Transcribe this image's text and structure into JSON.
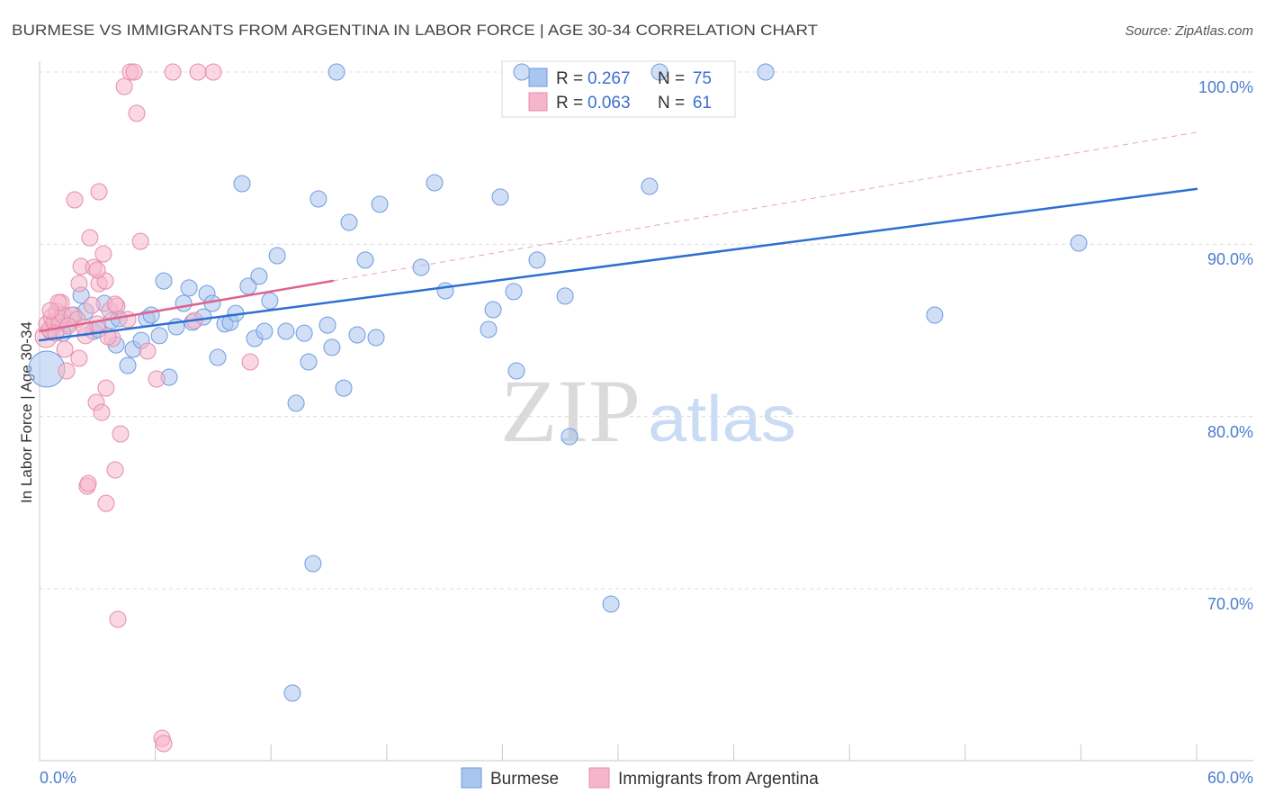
{
  "source": "Source: ZipAtlas.com",
  "watermark": {
    "zip": "ZIP",
    "atlas": "atlas"
  },
  "legend": {
    "r_label": "R =",
    "n_label": "N ="
  },
  "colors": {
    "axis": "#c8c8c8",
    "grid": "#dcdcdc",
    "tick_label": "#4a7dcf",
    "value_text": "#3b6fd0",
    "legend_border": "#d8d8d8"
  },
  "chart_data": {
    "type": "scatter",
    "title": "BURMESE VS IMMIGRANTS FROM ARGENTINA IN LABOR FORCE | AGE 30-34 CORRELATION CHART",
    "ylabel": "In Labor Force | Age 30-34",
    "xlim": [
      0,
      60
    ],
    "ylim": [
      60,
      100.63
    ],
    "x_ticks": [
      0,
      6,
      12,
      18,
      24,
      30,
      36,
      42,
      48,
      54,
      60
    ],
    "x_tick_labels": [
      "0.0%",
      "60.0%"
    ],
    "y_ticks": [
      70,
      80,
      90,
      100
    ],
    "y_tick_labels": [
      "70.0%",
      "80.0%",
      "90.0%",
      "100.0%"
    ],
    "grid": true,
    "legend_position": "top-center",
    "series": [
      {
        "name": "Burmese",
        "r": "0.267",
        "n": "75",
        "color": "#aac5ee",
        "stroke": "#6f9be0",
        "line_color": "#2d6fd2",
        "trend": {
          "x": [
            0,
            60
          ],
          "y": [
            84.42,
            93.21
          ]
        },
        "points": [
          [
            0.37,
            82.75
          ],
          [
            0.84,
            85.52
          ],
          [
            1.12,
            85.63
          ],
          [
            1.45,
            85.37
          ],
          [
            1.77,
            85.89
          ],
          [
            2.15,
            87.04
          ],
          [
            2.38,
            86.1
          ],
          [
            2.8,
            84.95
          ],
          [
            3.03,
            85.05
          ],
          [
            3.36,
            86.57
          ],
          [
            3.73,
            85.57
          ],
          [
            3.97,
            84.16
          ],
          [
            4.57,
            82.96
          ],
          [
            4.85,
            83.9
          ],
          [
            5.27,
            84.42
          ],
          [
            5.55,
            85.68
          ],
          [
            5.79,
            85.89
          ],
          [
            6.21,
            84.69
          ],
          [
            6.44,
            87.87
          ],
          [
            6.72,
            82.28
          ],
          [
            7.09,
            85.21
          ],
          [
            7.47,
            86.57
          ],
          [
            7.75,
            87.46
          ],
          [
            7.93,
            85.47
          ],
          [
            8.49,
            85.78
          ],
          [
            8.68,
            87.14
          ],
          [
            8.96,
            86.57
          ],
          [
            9.24,
            83.43
          ],
          [
            9.61,
            85.37
          ],
          [
            9.89,
            85.47
          ],
          [
            10.17,
            85.99
          ],
          [
            10.5,
            93.52
          ],
          [
            10.82,
            87.56
          ],
          [
            11.15,
            84.53
          ],
          [
            11.38,
            88.14
          ],
          [
            11.66,
            84.95
          ],
          [
            11.94,
            86.72
          ],
          [
            12.32,
            89.34
          ],
          [
            12.78,
            84.95
          ],
          [
            13.11,
            63.94
          ],
          [
            13.3,
            80.77
          ],
          [
            13.72,
            84.84
          ],
          [
            13.95,
            83.17
          ],
          [
            14.18,
            71.46
          ],
          [
            14.46,
            92.63
          ],
          [
            14.93,
            85.31
          ],
          [
            15.16,
            84.01
          ],
          [
            15.4,
            100.0
          ],
          [
            15.77,
            81.65
          ],
          [
            16.05,
            91.27
          ],
          [
            16.47,
            84.74
          ],
          [
            16.89,
            89.08
          ],
          [
            17.45,
            84.58
          ],
          [
            17.64,
            92.32
          ],
          [
            19.78,
            88.66
          ],
          [
            20.48,
            93.57
          ],
          [
            21.04,
            87.3
          ],
          [
            23.28,
            85.05
          ],
          [
            23.52,
            86.2
          ],
          [
            23.89,
            92.74
          ],
          [
            24.59,
            87.25
          ],
          [
            24.73,
            82.65
          ],
          [
            25.01,
            100.0
          ],
          [
            25.8,
            89.08
          ],
          [
            27.25,
            86.99
          ],
          [
            27.48,
            78.83
          ],
          [
            29.63,
            69.11
          ],
          [
            31.63,
            93.36
          ],
          [
            32.15,
            100.0
          ],
          [
            37.65,
            100.0
          ],
          [
            46.42,
            85.89
          ],
          [
            53.89,
            90.07
          ],
          [
            0.56,
            84.95
          ],
          [
            4.11,
            85.68
          ],
          [
            1.21,
            84.84
          ]
        ]
      },
      {
        "name": "Immigrants from Argentina",
        "r": "0.063",
        "n": "61",
        "color": "#f5b6cb",
        "stroke": "#e68cab",
        "line_color": "#e0628d",
        "dash_color": "#e8a4bd",
        "trend": {
          "x": [
            0,
            60
          ],
          "y": [
            84.95,
            96.5
          ],
          "solid_until_x": 15.2
        },
        "points": [
          [
            0.33,
            84.63
          ],
          [
            0.37,
            85.37
          ],
          [
            0.51,
            85.05
          ],
          [
            0.61,
            85.78
          ],
          [
            0.75,
            85.47
          ],
          [
            0.89,
            86.1
          ],
          [
            1.03,
            85.47
          ],
          [
            1.12,
            86.62
          ],
          [
            1.21,
            85.89
          ],
          [
            1.31,
            83.9
          ],
          [
            1.4,
            82.65
          ],
          [
            1.68,
            85.89
          ],
          [
            1.82,
            92.58
          ],
          [
            1.96,
            85.63
          ],
          [
            2.05,
            83.38
          ],
          [
            2.05,
            87.72
          ],
          [
            2.15,
            88.71
          ],
          [
            2.38,
            84.69
          ],
          [
            2.61,
            90.38
          ],
          [
            2.71,
            86.46
          ],
          [
            2.8,
            88.66
          ],
          [
            2.94,
            80.82
          ],
          [
            2.99,
            85.37
          ],
          [
            3.08,
            93.05
          ],
          [
            3.08,
            87.72
          ],
          [
            3.22,
            80.24
          ],
          [
            3.31,
            89.44
          ],
          [
            3.45,
            81.65
          ],
          [
            3.45,
            74.96
          ],
          [
            3.64,
            86.15
          ],
          [
            3.78,
            84.53
          ],
          [
            3.92,
            76.9
          ],
          [
            4.01,
            86.41
          ],
          [
            4.06,
            68.22
          ],
          [
            4.2,
            78.99
          ],
          [
            4.39,
            99.16
          ],
          [
            4.57,
            85.63
          ],
          [
            4.71,
            100.0
          ],
          [
            4.9,
            100.0
          ],
          [
            5.04,
            97.6
          ],
          [
            5.23,
            90.17
          ],
          [
            5.6,
            83.8
          ],
          [
            6.07,
            82.18
          ],
          [
            6.35,
            61.32
          ],
          [
            6.44,
            61.01
          ],
          [
            6.91,
            100.0
          ],
          [
            8.03,
            85.57
          ],
          [
            8.21,
            100.0
          ],
          [
            9.01,
            100.0
          ],
          [
            10.92,
            83.17
          ],
          [
            2.47,
            75.96
          ],
          [
            2.52,
            76.11
          ],
          [
            3.41,
            87.87
          ],
          [
            3.92,
            86.52
          ],
          [
            0.98,
            86.62
          ],
          [
            1.49,
            85.26
          ],
          [
            2.33,
            85.16
          ],
          [
            2.99,
            88.5
          ],
          [
            0.84,
            84.84
          ],
          [
            0.56,
            86.15
          ],
          [
            3.55,
            84.63
          ]
        ]
      }
    ]
  }
}
